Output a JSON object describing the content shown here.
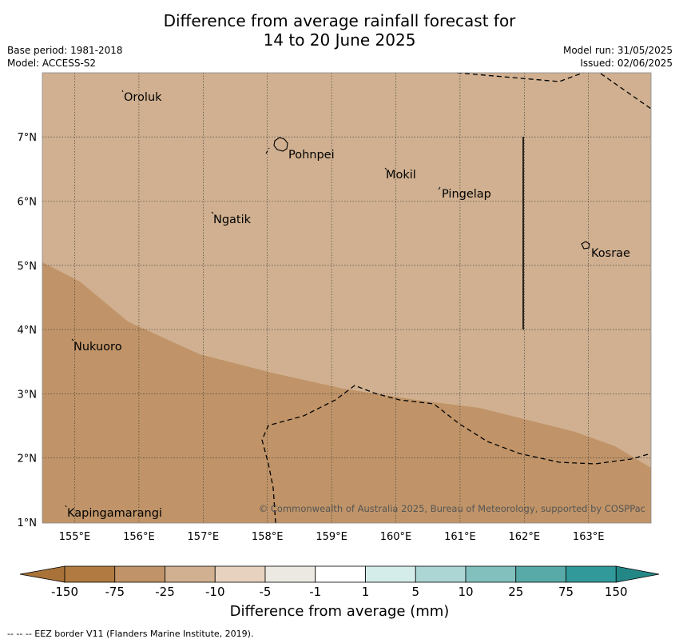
{
  "header": {
    "title_line1": "Difference from average rainfall forecast for",
    "title_line2": "14 to 20 June 2025",
    "base_period": "Base period: 1981-2018",
    "model": "Model: ACCESS-S2",
    "model_run": "Model run: 31/05/2025",
    "issued": "Issued: 02/06/2025"
  },
  "map": {
    "longitude_ticks": [
      "155°E",
      "156°E",
      "157°E",
      "158°E",
      "159°E",
      "160°E",
      "161°E",
      "162°E",
      "163°E"
    ],
    "latitude_ticks": [
      "1°N",
      "2°N",
      "3°N",
      "4°N",
      "5°N",
      "6°N",
      "7°N"
    ],
    "place_labels": [
      "Oroluk",
      "Pohnpei",
      "Mokil",
      "Pingelap",
      "Ngatik",
      "Kosrae",
      "Nukuoro",
      "Kapingamarangi"
    ],
    "copyright": "© Commonwealth of Australia 2025, Bureau of Meteorology, supported by COSPPac",
    "fill_colors": {
      "band_-25_to_-10": "#d0b090",
      "band_-75_to_-25": "#c09468"
    },
    "eez_border_style": "dashed"
  },
  "legend": {
    "tick_labels": [
      "-150",
      "-75",
      "-25",
      "-10",
      "-5",
      "-1",
      "1",
      "5",
      "10",
      "25",
      "75",
      "150"
    ],
    "colors": [
      "#a87238",
      "#b07a40",
      "#c09468",
      "#d0b090",
      "#e6d2be",
      "#ece8e2",
      "#ffffff",
      "#d4ecea",
      "#acd6d4",
      "#82c0be",
      "#58aaa8",
      "#32999a",
      "#238786"
    ],
    "caption": "Difference from average (mm)"
  },
  "footer": {
    "note": "--  --  -- EEZ border V11 (Flanders Marine Institute, 2019)."
  }
}
